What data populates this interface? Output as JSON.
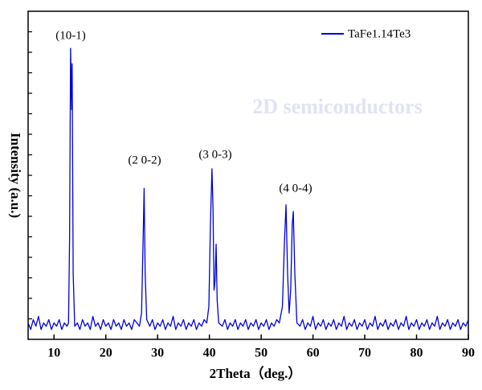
{
  "chart_data": {
    "type": "line",
    "xlabel": "2Theta（deg.）",
    "ylabel": "Intensity (a.u.)",
    "watermark": "2D semiconductors",
    "annotations": [
      "(10-1)",
      "(2 0-2)",
      "(3 0-3)",
      "(4 0-4)"
    ],
    "legend": "top-right",
    "xlim": [
      5,
      90
    ],
    "ylim": [
      0,
      100
    ],
    "xticks": [
      10,
      20,
      30,
      40,
      50,
      60,
      70,
      80,
      90
    ],
    "x": [
      5,
      5.5,
      6,
      6.5,
      7,
      7.5,
      8,
      8.5,
      9,
      9.5,
      10,
      10.5,
      11,
      11.5,
      12,
      12.5,
      12.8,
      13,
      13.2,
      13.4,
      13.5,
      13.7,
      14,
      14.5,
      15,
      15.5,
      16,
      16.5,
      17,
      17.5,
      18,
      18.5,
      19,
      19.5,
      20,
      20.5,
      21,
      21.5,
      22,
      22.5,
      23,
      23.5,
      24,
      24.5,
      25,
      25.5,
      26,
      26.5,
      26.9,
      27.2,
      27.4,
      27.6,
      27.9,
      28.5,
      29,
      29.5,
      30,
      30.5,
      31,
      31.5,
      32,
      32.5,
      33,
      33.5,
      34,
      34.5,
      35,
      35.5,
      36,
      36.5,
      37,
      37.5,
      38,
      38.5,
      39,
      39.5,
      39.9,
      40.2,
      40.5,
      40.7,
      40.9,
      41.1,
      41.3,
      41.5,
      41.8,
      42.5,
      43,
      43.5,
      44,
      44.5,
      45,
      45.5,
      46,
      46.5,
      47,
      47.5,
      48,
      48.5,
      49,
      49.5,
      50,
      50.5,
      51,
      51.5,
      52,
      52.5,
      53,
      53.5,
      54.1,
      54.5,
      54.8,
      55.1,
      55.4,
      55.7,
      56,
      56.2,
      56.5,
      56.9,
      57.5,
      58,
      58.5,
      59,
      59.5,
      60,
      60.5,
      61,
      61.5,
      62,
      62.5,
      63,
      63.5,
      64,
      64.5,
      65,
      65.5,
      66,
      66.5,
      67,
      67.5,
      68,
      68.5,
      69,
      69.5,
      70,
      70.5,
      71,
      71.5,
      72,
      72.5,
      73,
      73.5,
      74,
      74.5,
      75,
      75.5,
      76,
      76.5,
      77,
      77.5,
      78,
      78.5,
      79,
      79.5,
      80,
      80.5,
      81,
      81.5,
      82,
      82.5,
      83,
      83.5,
      84,
      84.5,
      85,
      85.5,
      86,
      86.5,
      87,
      87.5,
      88,
      88.5,
      89,
      89.5,
      90
    ],
    "series": [
      {
        "name": "TaFe1.14Te3",
        "color": "#0000dd",
        "values": [
          5,
          3,
          6,
          4,
          7,
          3,
          5,
          4,
          6,
          3,
          5,
          4,
          6,
          3,
          5,
          4,
          5,
          30,
          88.7,
          70,
          84,
          20,
          4,
          5,
          3,
          6,
          4,
          5,
          3,
          7,
          4,
          5,
          3,
          6,
          4,
          5,
          3,
          6,
          4,
          5,
          3,
          6,
          4,
          5,
          3,
          6,
          5,
          4,
          8,
          30,
          46,
          20,
          6,
          4,
          6,
          3,
          5,
          4,
          6,
          3,
          5,
          4,
          7,
          3,
          5,
          4,
          6,
          3,
          5,
          4,
          6,
          3,
          5,
          4,
          6,
          5,
          10,
          35,
          52,
          40,
          15,
          18,
          29,
          12,
          5,
          4,
          6,
          3,
          5,
          4,
          6,
          3,
          5,
          4,
          6,
          3,
          5,
          4,
          6,
          3,
          5,
          4,
          6,
          3,
          5,
          4,
          6,
          5,
          10,
          30,
          41,
          20,
          8,
          15,
          35,
          39,
          20,
          5,
          4,
          6,
          3,
          5,
          4,
          7,
          3,
          5,
          4,
          6,
          3,
          5,
          4,
          6,
          3,
          5,
          4,
          7,
          3,
          5,
          4,
          6,
          3,
          5,
          4,
          6,
          3,
          5,
          4,
          7,
          3,
          5,
          4,
          6,
          3,
          5,
          4,
          6,
          3,
          5,
          4,
          7,
          3,
          5,
          4,
          6,
          3,
          5,
          4,
          6,
          3,
          5,
          4,
          7,
          3,
          5,
          4,
          6,
          3,
          5,
          4,
          6,
          3,
          5,
          4,
          6
        ]
      }
    ]
  }
}
